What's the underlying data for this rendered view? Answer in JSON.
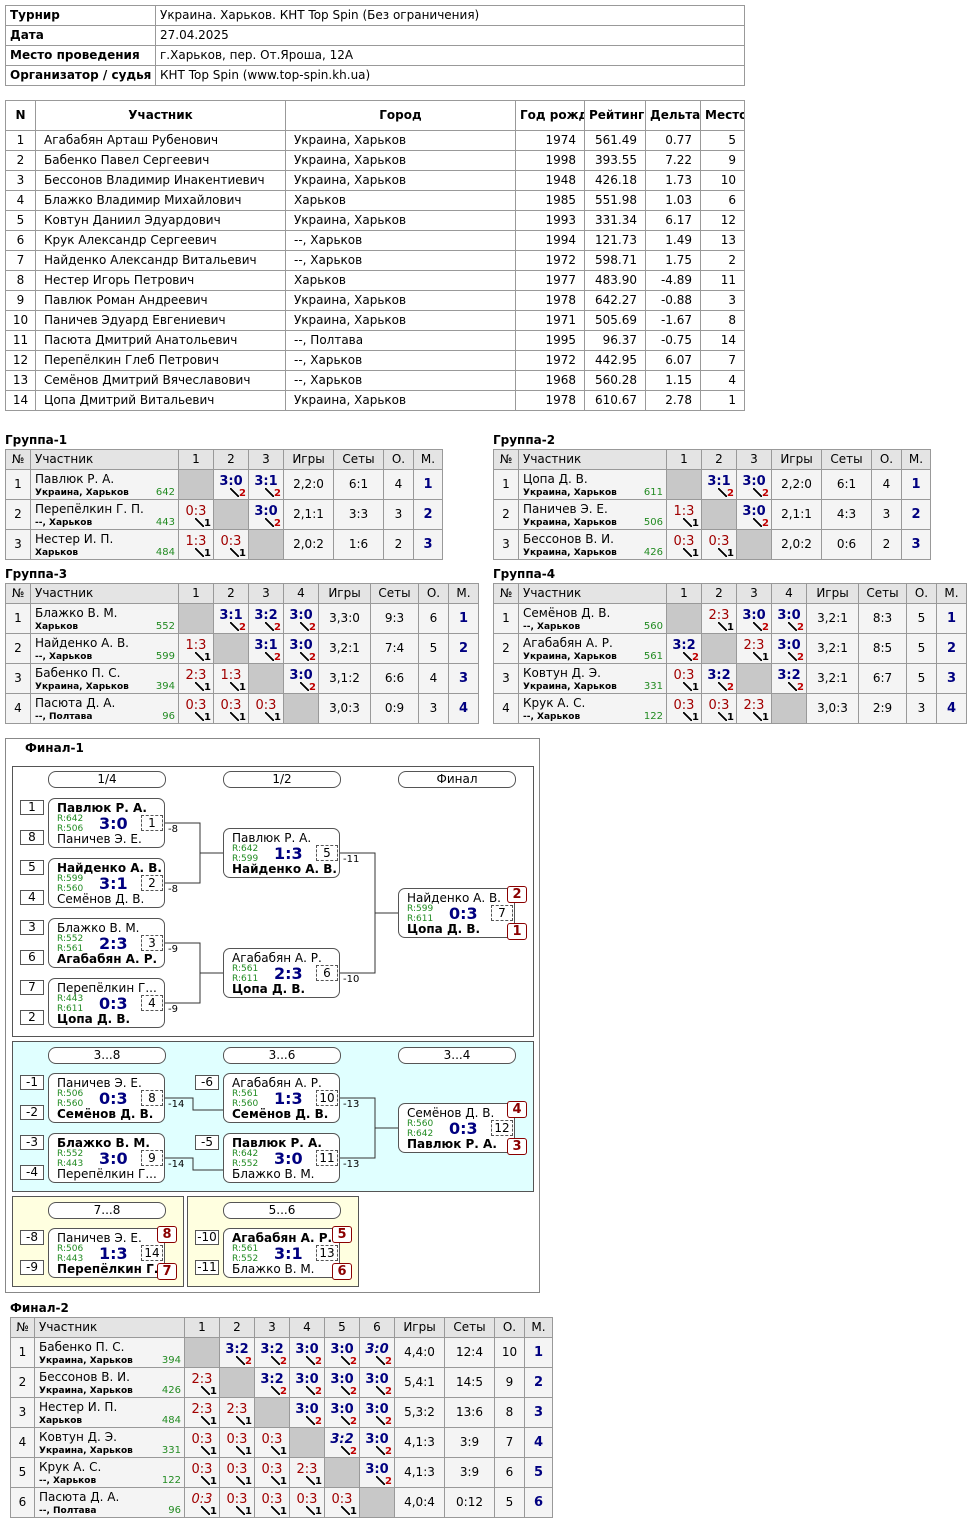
{
  "info": [
    {
      "label": "Турнир",
      "value": "Украина. Харьков. КНТ Top Spin (Без ограничения)"
    },
    {
      "label": "Дата",
      "value": "27.04.2025"
    },
    {
      "label": "Место проведения",
      "value": "г.Харьков, пер. От.Яроша, 12А"
    },
    {
      "label": "Организатор / судья",
      "value": "КНТ Top Spin (www.top-spin.kh.ua)"
    }
  ],
  "participants": {
    "header": [
      "N",
      "Участник",
      "Город",
      "Год рожд.",
      "Рейтинг",
      "Дельта",
      "Место"
    ],
    "rows": [
      [
        "1",
        "Агабабян Арташ Рубенович",
        "Украина, Харьков",
        "1974",
        "561.49",
        "0.77",
        "5"
      ],
      [
        "2",
        "Бабенко Павел Сергеевич",
        "Украина, Харьков",
        "1998",
        "393.55",
        "7.22",
        "9"
      ],
      [
        "3",
        "Бессонов Владимир Инакентиевич",
        "Украина, Харьков",
        "1948",
        "426.18",
        "1.73",
        "10"
      ],
      [
        "4",
        "Блажко Владимир Михайлович",
        "Харьков",
        "1985",
        "551.98",
        "1.03",
        "6"
      ],
      [
        "5",
        "Ковтун Даниил Эдуардович",
        "Украина, Харьков",
        "1993",
        "331.34",
        "6.17",
        "12"
      ],
      [
        "6",
        "Крук Александр Сергеевич",
        "--, Харьков",
        "1994",
        "121.73",
        "1.49",
        "13"
      ],
      [
        "7",
        "Найденко Александр Витальевич",
        "--, Харьков",
        "1972",
        "598.71",
        "1.75",
        "2"
      ],
      [
        "8",
        "Нестер Игорь Петрович",
        "Харьков",
        "1977",
        "483.90",
        "-4.89",
        "11"
      ],
      [
        "9",
        "Павлюк Роман Андреевич",
        "Украина, Харьков",
        "1978",
        "642.27",
        "-0.88",
        "3"
      ],
      [
        "10",
        "Паничев Эдуард Евгениевич",
        "Украина, Харьков",
        "1971",
        "505.69",
        "-1.67",
        "8"
      ],
      [
        "11",
        "Пасюта Дмитрий Анатольевич",
        "--, Полтава",
        "1995",
        "96.37",
        "-0.75",
        "14"
      ],
      [
        "12",
        "Перепёлкин Глеб Петрович",
        "--, Харьков",
        "1972",
        "442.95",
        "6.07",
        "7"
      ],
      [
        "13",
        "Семёнов Дмитрий Вячеславович",
        "--, Харьков",
        "1968",
        "560.28",
        "1.15",
        "4"
      ],
      [
        "14",
        "Цопа Дмитрий Витальевич",
        "Украина, Харьков",
        "1978",
        "610.67",
        "2.78",
        "1"
      ]
    ]
  },
  "groups": [
    {
      "title": "Группа-1",
      "header": [
        "№",
        "Участник",
        "1",
        "2",
        "3",
        "Игры",
        "Сеты",
        "О.",
        "М."
      ],
      "rows": [
        {
          "n": 1,
          "name": "Павлюк Р. А.",
          "region": "Украина, Харьков",
          "rating": 642,
          "results": [
            null,
            {
              "score": "3:0",
              "pts": 2
            },
            {
              "score": "3:1",
              "pts": 2
            }
          ],
          "games": "2,2:0",
          "sets": "6:1",
          "points": 4,
          "place": 1
        },
        {
          "n": 2,
          "name": "Перепёлкин Г. П.",
          "region": "--, Харьков",
          "rating": 443,
          "results": [
            {
              "score": "0:3",
              "pts": 1
            },
            null,
            {
              "score": "3:0",
              "pts": 2
            }
          ],
          "games": "2,1:1",
          "sets": "3:3",
          "points": 3,
          "place": 2
        },
        {
          "n": 3,
          "name": "Нестер И. П.",
          "region": "Харьков",
          "rating": 484,
          "results": [
            {
              "score": "1:3",
              "pts": 1
            },
            {
              "score": "0:3",
              "pts": 1
            },
            null
          ],
          "games": "2,0:2",
          "sets": "1:6",
          "points": 2,
          "place": 3
        }
      ]
    },
    {
      "title": "Группа-2",
      "header": [
        "№",
        "Участник",
        "1",
        "2",
        "3",
        "Игры",
        "Сеты",
        "О.",
        "М."
      ],
      "rows": [
        {
          "n": 1,
          "name": "Цопа Д. В.",
          "region": "Украина, Харьков",
          "rating": 611,
          "results": [
            null,
            {
              "score": "3:1",
              "pts": 2
            },
            {
              "score": "3:0",
              "pts": 2
            }
          ],
          "games": "2,2:0",
          "sets": "6:1",
          "points": 4,
          "place": 1
        },
        {
          "n": 2,
          "name": "Паничев Э. Е.",
          "region": "Украина, Харьков",
          "rating": 506,
          "results": [
            {
              "score": "1:3",
              "pts": 1
            },
            null,
            {
              "score": "3:0",
              "pts": 2
            }
          ],
          "games": "2,1:1",
          "sets": "4:3",
          "points": 3,
          "place": 2
        },
        {
          "n": 3,
          "name": "Бессонов В. И.",
          "region": "Украина, Харьков",
          "rating": 426,
          "results": [
            {
              "score": "0:3",
              "pts": 1
            },
            {
              "score": "0:3",
              "pts": 1
            },
            null
          ],
          "games": "2,0:2",
          "sets": "0:6",
          "points": 2,
          "place": 3
        }
      ]
    },
    {
      "title": "Группа-3",
      "header": [
        "№",
        "Участник",
        "1",
        "2",
        "3",
        "4",
        "Игры",
        "Сеты",
        "О.",
        "М."
      ],
      "rows": [
        {
          "n": 1,
          "name": "Блажко В. М.",
          "region": "Харьков",
          "rating": 552,
          "results": [
            null,
            {
              "score": "3:1",
              "pts": 2
            },
            {
              "score": "3:2",
              "pts": 2
            },
            {
              "score": "3:0",
              "pts": 2
            }
          ],
          "games": "3,3:0",
          "sets": "9:3",
          "points": 6,
          "place": 1
        },
        {
          "n": 2,
          "name": "Найденко А. В.",
          "region": "--, Харьков",
          "rating": 599,
          "results": [
            {
              "score": "1:3",
              "pts": 1
            },
            null,
            {
              "score": "3:1",
              "pts": 2
            },
            {
              "score": "3:0",
              "pts": 2
            }
          ],
          "games": "3,2:1",
          "sets": "7:4",
          "points": 5,
          "place": 2
        },
        {
          "n": 3,
          "name": "Бабенко П. С.",
          "region": "Украина, Харьков",
          "rating": 394,
          "results": [
            {
              "score": "2:3",
              "pts": 1
            },
            {
              "score": "1:3",
              "pts": 1
            },
            null,
            {
              "score": "3:0",
              "pts": 2
            }
          ],
          "games": "3,1:2",
          "sets": "6:6",
          "points": 4,
          "place": 3
        },
        {
          "n": 4,
          "name": "Пасюта Д. А.",
          "region": "--, Полтава",
          "rating": 96,
          "results": [
            {
              "score": "0:3",
              "pts": 1
            },
            {
              "score": "0:3",
              "pts": 1
            },
            {
              "score": "0:3",
              "pts": 1
            },
            null
          ],
          "games": "3,0:3",
          "sets": "0:9",
          "points": 3,
          "place": 4
        }
      ]
    },
    {
      "title": "Группа-4",
      "header": [
        "№",
        "Участник",
        "1",
        "2",
        "3",
        "4",
        "Игры",
        "Сеты",
        "О.",
        "М."
      ],
      "rows": [
        {
          "n": 1,
          "name": "Семёнов Д. В.",
          "region": "--, Харьков",
          "rating": 560,
          "results": [
            null,
            {
              "score": "2:3",
              "pts": 1
            },
            {
              "score": "3:0",
              "pts": 2
            },
            {
              "score": "3:0",
              "pts": 2
            }
          ],
          "games": "3,2:1",
          "sets": "8:3",
          "points": 5,
          "place": 1
        },
        {
          "n": 2,
          "name": "Агабабян А. Р.",
          "region": "Украина, Харьков",
          "rating": 561,
          "results": [
            {
              "score": "3:2",
              "pts": 2
            },
            null,
            {
              "score": "2:3",
              "pts": 1
            },
            {
              "score": "3:0",
              "pts": 2
            }
          ],
          "games": "3,2:1",
          "sets": "8:5",
          "points": 5,
          "place": 2
        },
        {
          "n": 3,
          "name": "Ковтун Д. Э.",
          "region": "Украина, Харьков",
          "rating": 331,
          "results": [
            {
              "score": "0:3",
              "pts": 1
            },
            {
              "score": "3:2",
              "pts": 2
            },
            null,
            {
              "score": "3:2",
              "pts": 2
            }
          ],
          "games": "3,2:1",
          "sets": "6:7",
          "points": 5,
          "place": 3
        },
        {
          "n": 4,
          "name": "Крук А. С.",
          "region": "--, Харьков",
          "rating": 122,
          "results": [
            {
              "score": "0:3",
              "pts": 1
            },
            {
              "score": "0:3",
              "pts": 1
            },
            {
              "score": "2:3",
              "pts": 1
            },
            null
          ],
          "games": "3,0:3",
          "sets": "2:9",
          "points": 3,
          "place": 4
        }
      ]
    }
  ],
  "final1": {
    "title": "Финал-1",
    "stages": [
      "1/4",
      "1/2",
      "Финал",
      "3...8",
      "3...6",
      "3...4",
      "7...8",
      "5...6"
    ],
    "matches": [
      {
        "seed_top": 1,
        "seed_bottom": 8,
        "top": "Павлюк Р. А.",
        "top_rating": "R:642",
        "bottom": "Паничев Э. Е.",
        "bottom_rating": "R:506",
        "score": "3:0",
        "number": 1,
        "loser_to": -8,
        "winner": "top"
      },
      {
        "seed_top": 5,
        "seed_bottom": 4,
        "top": "Найденко А. В.",
        "top_rating": "R:599",
        "bottom": "Семёнов Д. В.",
        "bottom_rating": "R:560",
        "score": "3:1",
        "number": 2,
        "loser_to": -8,
        "winner": "top"
      },
      {
        "seed_top": 3,
        "seed_bottom": 6,
        "top": "Блажко В. М.",
        "top_rating": "R:552",
        "bottom": "Агабабян А. Р.",
        "bottom_rating": "R:561",
        "score": "2:3",
        "number": 3,
        "loser_to": -9,
        "winner": "bottom"
      },
      {
        "seed_top": 7,
        "seed_bottom": 2,
        "top": "Перепёлкин Г...",
        "top_rating": "R:443",
        "bottom": "Цопа Д. В.",
        "bottom_rating": "R:611",
        "score": "0:3",
        "number": 4,
        "loser_to": -9,
        "winner": "bottom"
      },
      {
        "top": "Павлюк Р. А.",
        "top_rating": "R:642",
        "bottom": "Найденко А. В.",
        "bottom_rating": "R:599",
        "score": "1:3",
        "number": 5,
        "loser_to": -11,
        "winner": "bottom"
      },
      {
        "top": "Агабабян А. Р.",
        "top_rating": "R:561",
        "bottom": "Цопа Д. В.",
        "bottom_rating": "R:611",
        "score": "2:3",
        "number": 6,
        "loser_to": -10,
        "winner": "bottom"
      },
      {
        "top": "Найденко А. В.",
        "top_rating": "R:599",
        "bottom": "Цопа Д. В.",
        "bottom_rating": "R:611",
        "score": "0:3",
        "number": 7,
        "place_top": 2,
        "place_bottom": 1,
        "winner": "bottom"
      },
      {
        "seed_top": -1,
        "seed_bottom": -2,
        "top": "Паничев Э. Е.",
        "top_rating": "R:506",
        "bottom": "Семёнов Д. В.",
        "bottom_rating": "R:560",
        "score": "0:3",
        "number": 8,
        "loser_to": -14,
        "winner": "bottom"
      },
      {
        "seed_top": -3,
        "seed_bottom": -4,
        "top": "Блажко В. М.",
        "top_rating": "R:552",
        "bottom": "Перепёлкин Г...",
        "bottom_rating": "R:443",
        "score": "3:0",
        "number": 9,
        "loser_to": -14,
        "winner": "top"
      },
      {
        "seed_top": -6,
        "top": "Агабабян А. Р.",
        "top_rating": "R:561",
        "bottom": "Семёнов Д. В.",
        "bottom_rating": "R:560",
        "score": "1:3",
        "number": 10,
        "loser_to": -13,
        "winner": "bottom"
      },
      {
        "seed_top": -5,
        "top": "Павлюк Р. А.",
        "top_rating": "R:642",
        "bottom": "Блажко В. М.",
        "bottom_rating": "R:552",
        "score": "3:0",
        "number": 11,
        "loser_to": -13,
        "winner": "top"
      },
      {
        "top": "Семёнов Д. В.",
        "top_rating": "R:560",
        "bottom": "Павлюк Р. А.",
        "bottom_rating": "R:642",
        "score": "0:3",
        "number": 12,
        "place_top": 4,
        "place_bottom": 3,
        "winner": "bottom"
      },
      {
        "seed_top": -8,
        "seed_bottom": -9,
        "top": "Паничев Э. Е.",
        "top_rating": "R:506",
        "bottom": "Перепёлкин Г....",
        "bottom_rating": "R:443",
        "score": "1:3",
        "number": 14,
        "place_top": 8,
        "place_bottom": 7,
        "winner": "bottom"
      },
      {
        "seed_top": -10,
        "seed_bottom": -11,
        "top": "Агабабян А. Р.",
        "top_rating": "R:561",
        "bottom": "Блажко В. М.",
        "bottom_rating": "R:552",
        "score": "3:1",
        "number": 13,
        "place_top": 5,
        "place_bottom": 6,
        "winner": "top"
      }
    ]
  },
  "final2": {
    "title": "Финал-2",
    "header": [
      "№",
      "Участник",
      "1",
      "2",
      "3",
      "4",
      "5",
      "6",
      "Игры",
      "Сеты",
      "О.",
      "М."
    ],
    "rows": [
      {
        "n": 1,
        "name": "Бабенко П. С.",
        "region": "Украина, Харьков",
        "rating": 394,
        "results": [
          null,
          {
            "score": "3:2",
            "pts": 2
          },
          {
            "score": "3:2",
            "pts": 2
          },
          {
            "score": "3:0",
            "pts": 2
          },
          {
            "score": "3:0",
            "pts": 2
          },
          {
            "score": "3:0",
            "pts": 2,
            "italic": true
          }
        ],
        "games": "4,4:0",
        "sets": "12:4",
        "points": 10,
        "place": 1
      },
      {
        "n": 2,
        "name": "Бессонов В. И.",
        "region": "Украина, Харьков",
        "rating": 426,
        "results": [
          {
            "score": "2:3",
            "pts": 1
          },
          null,
          {
            "score": "3:2",
            "pts": 2
          },
          {
            "score": "3:0",
            "pts": 2
          },
          {
            "score": "3:0",
            "pts": 2
          },
          {
            "score": "3:0",
            "pts": 2
          }
        ],
        "games": "5,4:1",
        "sets": "14:5",
        "points": 9,
        "place": 2
      },
      {
        "n": 3,
        "name": "Нестер И. П.",
        "region": "Харьков",
        "rating": 484,
        "results": [
          {
            "score": "2:3",
            "pts": 1
          },
          {
            "score": "2:3",
            "pts": 1
          },
          null,
          {
            "score": "3:0",
            "pts": 2
          },
          {
            "score": "3:0",
            "pts": 2
          },
          {
            "score": "3:0",
            "pts": 2
          }
        ],
        "games": "5,3:2",
        "sets": "13:6",
        "points": 8,
        "place": 3
      },
      {
        "n": 4,
        "name": "Ковтун Д. Э.",
        "region": "Украина, Харьков",
        "rating": 331,
        "results": [
          {
            "score": "0:3",
            "pts": 1
          },
          {
            "score": "0:3",
            "pts": 1
          },
          {
            "score": "0:3",
            "pts": 1
          },
          null,
          {
            "score": "3:2",
            "pts": 2,
            "italic": true
          },
          {
            "score": "3:0",
            "pts": 2
          }
        ],
        "games": "4,1:3",
        "sets": "3:9",
        "points": 7,
        "place": 4
      },
      {
        "n": 5,
        "name": "Крук А. С.",
        "region": "--, Харьков",
        "rating": 122,
        "results": [
          {
            "score": "0:3",
            "pts": 1
          },
          {
            "score": "0:3",
            "pts": 1
          },
          {
            "score": "0:3",
            "pts": 1
          },
          {
            "score": "2:3",
            "pts": 1
          },
          null,
          {
            "score": "3:0",
            "pts": 2
          }
        ],
        "games": "4,1:3",
        "sets": "3:9",
        "points": 6,
        "place": 5
      },
      {
        "n": 6,
        "name": "Пасюта Д. А.",
        "region": "--, Полтава",
        "rating": 96,
        "results": [
          {
            "score": "0:3",
            "pts": 1,
            "italic": true
          },
          {
            "score": "0:3",
            "pts": 1
          },
          {
            "score": "0:3",
            "pts": 1
          },
          {
            "score": "0:3",
            "pts": 1
          },
          {
            "score": "0:3",
            "pts": 1
          },
          null
        ],
        "games": "4,0:4",
        "sets": "0:12",
        "points": 5,
        "place": 6
      }
    ]
  }
}
